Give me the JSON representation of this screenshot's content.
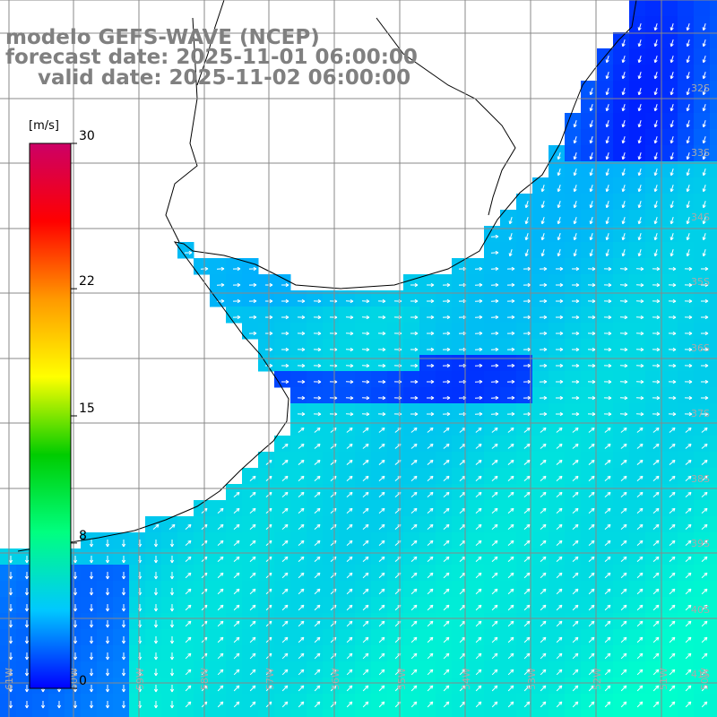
{
  "title": {
    "model": "modelo GEFS-WAVE (NCEP)",
    "forecast": "forecast date: 2025-11-01 06:00:00",
    "valid": "valid date: 2025-11-02 06:00:00"
  },
  "colorbar": {
    "unit": "[m/s]",
    "ticks": [
      "30",
      "22",
      "15",
      "8",
      "0"
    ],
    "tick_values": [
      30,
      22,
      15,
      8,
      0
    ],
    "range": [
      0,
      30
    ],
    "colors": [
      "#0000ff",
      "#00c8ff",
      "#00ff80",
      "#00cc00",
      "#ffff00",
      "#ff9900",
      "#ff0000",
      "#cc0066"
    ]
  },
  "map": {
    "lat_labels": [
      "32S",
      "33S",
      "34S",
      "35S",
      "36S",
      "37S",
      "38S",
      "39S",
      "40S",
      "41S"
    ],
    "lon_labels": [
      "61W",
      "60W",
      "59W",
      "58W",
      "57W",
      "56W",
      "55W",
      "54W",
      "53W",
      "52W",
      "51W",
      "50W"
    ],
    "land_color": "#ffffff",
    "ocean_low": "#0055ff",
    "ocean_high": "#00ffcc"
  }
}
